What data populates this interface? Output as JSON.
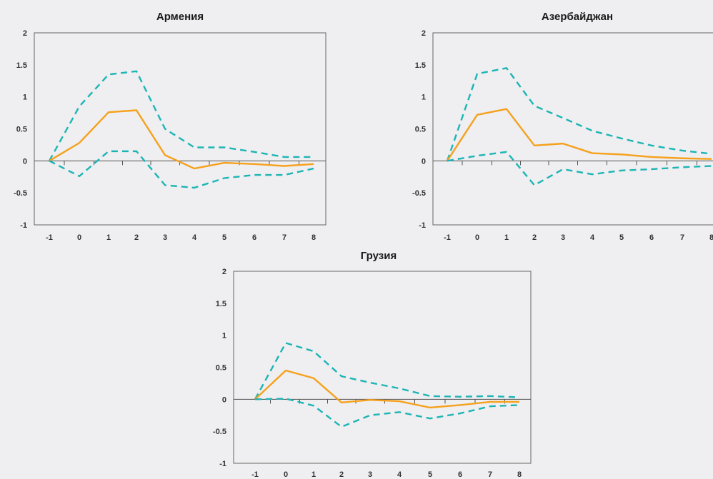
{
  "chart_data": [
    {
      "type": "line",
      "title": "Армения",
      "x": [
        -1,
        0,
        1,
        2,
        3,
        4,
        5,
        6,
        7,
        8
      ],
      "ylim": [
        -1,
        2
      ],
      "yticks": [
        "2",
        "1.5",
        "1",
        "0.5",
        "0",
        "-0.5",
        "-1"
      ],
      "xticks": [
        "-1",
        "0",
        "1",
        "2",
        "3",
        "4",
        "5",
        "6",
        "7",
        "8"
      ],
      "series": [
        {
          "role": "upper",
          "color": "#1cb5b5",
          "style": "dashed",
          "values": [
            0,
            0.85,
            1.35,
            1.4,
            0.5,
            0.21,
            0.21,
            0.14,
            0.06,
            0.06
          ]
        },
        {
          "role": "estimate",
          "color": "#f5a11c",
          "style": "solid",
          "values": [
            0,
            0.28,
            0.76,
            0.79,
            0.09,
            -0.12,
            -0.03,
            -0.05,
            -0.08,
            -0.05
          ]
        },
        {
          "role": "lower",
          "color": "#1cb5b5",
          "style": "dashed",
          "values": [
            0,
            -0.24,
            0.15,
            0.15,
            -0.38,
            -0.42,
            -0.27,
            -0.22,
            -0.22,
            -0.12
          ]
        }
      ]
    },
    {
      "type": "line",
      "title": "Азербайджан",
      "x": [
        -1,
        0,
        1,
        2,
        3,
        4,
        5,
        6,
        7,
        8
      ],
      "ylim": [
        -1,
        2
      ],
      "yticks": [
        "2",
        "1.5",
        "1",
        "0.5",
        "0",
        "-0.5",
        "-1"
      ],
      "xticks": [
        "-1",
        "0",
        "1",
        "2",
        "3",
        "4",
        "5",
        "6",
        "7",
        "8"
      ],
      "series": [
        {
          "role": "upper",
          "color": "#1cb5b5",
          "style": "dashed",
          "values": [
            0,
            1.36,
            1.45,
            0.86,
            0.67,
            0.47,
            0.35,
            0.24,
            0.16,
            0.11
          ]
        },
        {
          "role": "estimate",
          "color": "#f5a11c",
          "style": "solid",
          "values": [
            0,
            0.72,
            0.81,
            0.24,
            0.27,
            0.12,
            0.1,
            0.06,
            0.04,
            0.03
          ]
        },
        {
          "role": "lower",
          "color": "#1cb5b5",
          "style": "dashed",
          "values": [
            0,
            0.08,
            0.14,
            -0.38,
            -0.13,
            -0.21,
            -0.15,
            -0.13,
            -0.1,
            -0.08
          ]
        }
      ]
    },
    {
      "type": "line",
      "title": "Грузия",
      "x": [
        -1,
        0,
        1,
        2,
        3,
        4,
        5,
        6,
        7,
        8
      ],
      "ylim": [
        -1,
        2
      ],
      "yticks": [
        "2",
        "1.5",
        "1",
        "0.5",
        "0",
        "-0.5",
        "-1"
      ],
      "xticks": [
        "-1",
        "0",
        "1",
        "2",
        "3",
        "4",
        "5",
        "6",
        "7",
        "8"
      ],
      "series": [
        {
          "role": "upper",
          "color": "#1cb5b5",
          "style": "dashed",
          "values": [
            0,
            0.88,
            0.75,
            0.36,
            0.26,
            0.17,
            0.05,
            0.04,
            0.05,
            0.03
          ]
        },
        {
          "role": "estimate",
          "color": "#f5a11c",
          "style": "solid",
          "values": [
            0,
            0.45,
            0.33,
            -0.05,
            -0.01,
            -0.03,
            -0.13,
            -0.09,
            -0.04,
            -0.04
          ]
        },
        {
          "role": "lower",
          "color": "#1cb5b5",
          "style": "dashed",
          "values": [
            0,
            0.01,
            -0.1,
            -0.43,
            -0.25,
            -0.2,
            -0.3,
            -0.22,
            -0.11,
            -0.09
          ]
        }
      ]
    }
  ]
}
